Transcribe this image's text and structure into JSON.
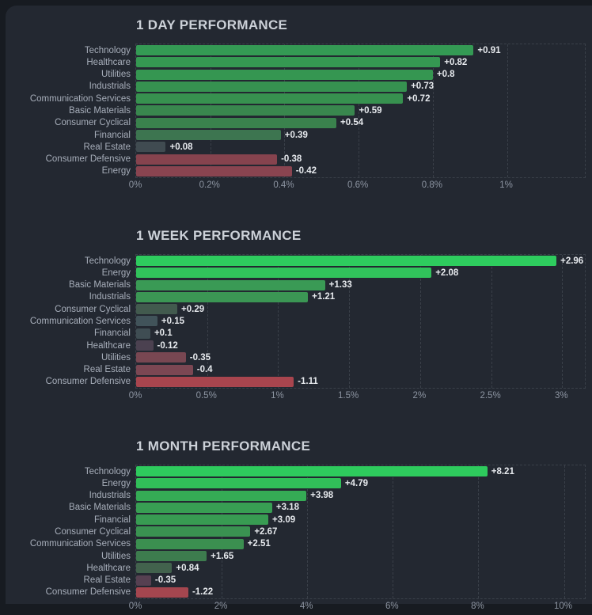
{
  "page": {
    "page_background": "#171b21",
    "panel_background": "#232831",
    "grid_color": "#3a4049",
    "title_color": "#ccd1d8",
    "category_color": "#a7aeba",
    "value_color": "#e7eaee",
    "tick_color": "#8d95a2"
  },
  "chart_data": [
    {
      "type": "bar",
      "orientation": "horizontal",
      "title": "1 DAY PERFORMANCE",
      "categories": [
        "Technology",
        "Healthcare",
        "Utilities",
        "Industrials",
        "Communication Services",
        "Basic Materials",
        "Consumer Cyclical",
        "Financial",
        "Real Estate",
        "Consumer Defensive",
        "Energy"
      ],
      "values": [
        0.91,
        0.82,
        0.8,
        0.73,
        0.72,
        0.59,
        0.54,
        0.39,
        0.08,
        -0.38,
        -0.42
      ],
      "value_labels": [
        "+0.91",
        "+0.82",
        "+0.8",
        "+0.73",
        "+0.72",
        "+0.59",
        "+0.54",
        "+0.39",
        "+0.08",
        "-0.38",
        "-0.42"
      ],
      "colors": [
        "#349a54",
        "#359852",
        "#359651",
        "#369250",
        "#37914f",
        "#39874e",
        "#3a824d",
        "#3d7550",
        "#404b51",
        "#86434e",
        "#894450"
      ],
      "xlabel": "",
      "ylabel": "",
      "grid": "dashed",
      "xticks": [
        "0%",
        "0.2%",
        "0.4%",
        "0.6%",
        "0.8%",
        "1%"
      ],
      "xtick_values": [
        0,
        0.2,
        0.4,
        0.6,
        0.8,
        1
      ],
      "xlim": [
        0,
        1.21
      ]
    },
    {
      "type": "bar",
      "orientation": "horizontal",
      "title": "1 WEEK PERFORMANCE",
      "categories": [
        "Technology",
        "Energy",
        "Basic Materials",
        "Industrials",
        "Consumer Cyclical",
        "Communication Services",
        "Financial",
        "Healthcare",
        "Utilities",
        "Real Estate",
        "Consumer Defensive"
      ],
      "values": [
        2.96,
        2.08,
        1.33,
        1.21,
        0.29,
        0.15,
        0.1,
        -0.12,
        -0.35,
        -0.4,
        -1.11
      ],
      "value_labels": [
        "+2.96",
        "+2.08",
        "+1.33",
        "+1.21",
        "+0.29",
        "+0.15",
        "+0.1",
        "-0.12",
        "-0.35",
        "-0.4",
        "-1.11"
      ],
      "colors": [
        "#2ecc5e",
        "#31c25b",
        "#3a9a55",
        "#3b9654",
        "#425a4e",
        "#41535a",
        "#3f4d53",
        "#4b4150",
        "#784752",
        "#7b4753",
        "#a8454e"
      ],
      "xlabel": "",
      "ylabel": "",
      "grid": "dashed",
      "xticks": [
        "0%",
        "0.5%",
        "1%",
        "1.5%",
        "2%",
        "2.5%",
        "3%"
      ],
      "xtick_values": [
        0,
        0.5,
        1,
        1.5,
        2,
        2.5,
        3
      ],
      "xlim": [
        0,
        3.16
      ]
    },
    {
      "type": "bar",
      "orientation": "horizontal",
      "title": "1 MONTH PERFORMANCE",
      "categories": [
        "Technology",
        "Energy",
        "Industrials",
        "Basic Materials",
        "Financial",
        "Consumer Cyclical",
        "Communication Services",
        "Utilities",
        "Healthcare",
        "Real Estate",
        "Consumer Defensive"
      ],
      "values": [
        8.21,
        4.79,
        3.98,
        3.18,
        3.09,
        2.67,
        2.51,
        1.65,
        0.84,
        -0.35,
        -1.22
      ],
      "value_labels": [
        "+8.21",
        "+4.79",
        "+3.98",
        "+3.18",
        "+3.09",
        "+2.67",
        "+2.51",
        "+1.65",
        "+0.84",
        "-0.35",
        "-1.22"
      ],
      "colors": [
        "#2ecb5d",
        "#31bf59",
        "#35ab55",
        "#389e53",
        "#389b52",
        "#3a9251",
        "#3b8f50",
        "#3d7c4e",
        "#42624d",
        "#564051",
        "#a4464f"
      ],
      "xlabel": "",
      "ylabel": "",
      "grid": "dashed",
      "xticks": [
        "0%",
        "2%",
        "4%",
        "6%",
        "8%",
        "10%"
      ],
      "xtick_values": [
        0,
        2,
        4,
        6,
        8,
        10
      ],
      "xlim": [
        0,
        10.49
      ]
    }
  ]
}
